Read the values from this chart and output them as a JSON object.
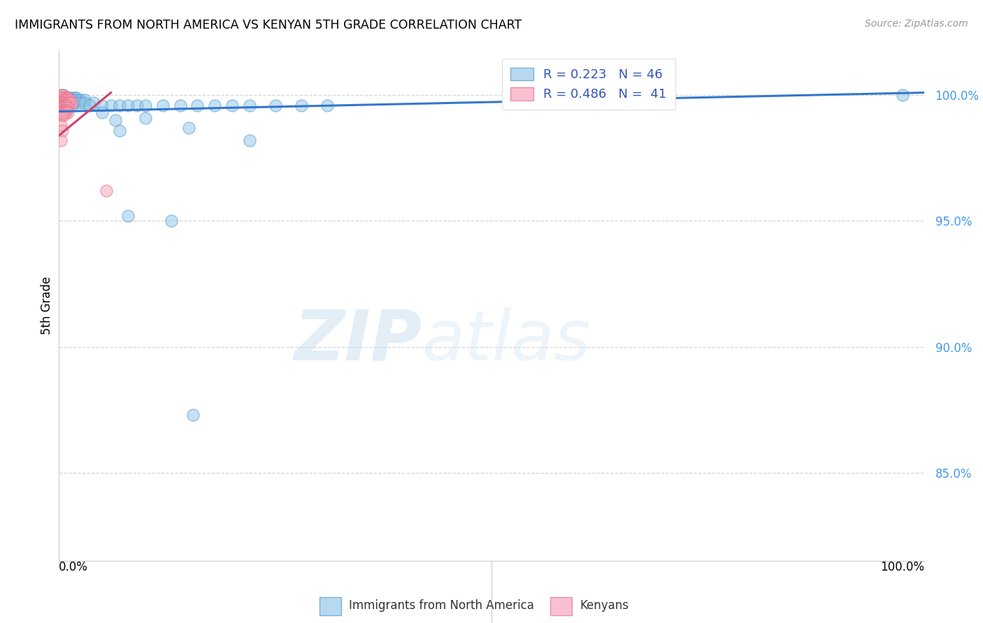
{
  "title": "IMMIGRANTS FROM NORTH AMERICA VS KENYAN 5TH GRADE CORRELATION CHART",
  "source": "Source: ZipAtlas.com",
  "ylabel": "5th Grade",
  "ytick_labels": [
    "100.0%",
    "95.0%",
    "90.0%",
    "85.0%"
  ],
  "ytick_values": [
    1.0,
    0.95,
    0.9,
    0.85
  ],
  "xlim": [
    0.0,
    1.0
  ],
  "ylim": [
    0.815,
    1.018
  ],
  "legend_blue_label": "R = 0.223   N = 46",
  "legend_pink_label": "R = 0.486   N =  41",
  "watermark_zip": "ZIP",
  "watermark_atlas": "atlas",
  "blue_color": "#8ec4e8",
  "pink_color": "#f4a0b0",
  "blue_edge_color": "#5a9fd4",
  "pink_edge_color": "#e87090",
  "trendline_blue_color": "#3377cc",
  "trendline_pink_color": "#cc4466",
  "blue_scatter": [
    [
      0.005,
      1.0
    ],
    [
      0.008,
      0.999
    ],
    [
      0.01,
      0.999
    ],
    [
      0.012,
      0.999
    ],
    [
      0.015,
      0.999
    ],
    [
      0.018,
      0.999
    ],
    [
      0.02,
      0.999
    ],
    [
      0.01,
      0.998
    ],
    [
      0.015,
      0.998
    ],
    [
      0.02,
      0.998
    ],
    [
      0.025,
      0.998
    ],
    [
      0.03,
      0.998
    ],
    [
      0.008,
      0.997
    ],
    [
      0.012,
      0.997
    ],
    [
      0.018,
      0.997
    ],
    [
      0.025,
      0.997
    ],
    [
      0.03,
      0.997
    ],
    [
      0.04,
      0.997
    ],
    [
      0.005,
      0.996
    ],
    [
      0.015,
      0.996
    ],
    [
      0.035,
      0.996
    ],
    [
      0.05,
      0.996
    ],
    [
      0.06,
      0.996
    ],
    [
      0.07,
      0.996
    ],
    [
      0.08,
      0.996
    ],
    [
      0.09,
      0.996
    ],
    [
      0.1,
      0.996
    ],
    [
      0.12,
      0.996
    ],
    [
      0.14,
      0.996
    ],
    [
      0.16,
      0.996
    ],
    [
      0.18,
      0.996
    ],
    [
      0.2,
      0.996
    ],
    [
      0.22,
      0.996
    ],
    [
      0.25,
      0.996
    ],
    [
      0.28,
      0.996
    ],
    [
      0.31,
      0.996
    ],
    [
      0.1,
      0.991
    ],
    [
      0.15,
      0.987
    ],
    [
      0.22,
      0.982
    ],
    [
      0.08,
      0.952
    ],
    [
      0.13,
      0.95
    ],
    [
      0.155,
      0.873
    ],
    [
      0.975,
      1.0
    ],
    [
      0.05,
      0.993
    ],
    [
      0.065,
      0.99
    ],
    [
      0.07,
      0.986
    ]
  ],
  "pink_scatter": [
    [
      0.002,
      1.0
    ],
    [
      0.004,
      1.0
    ],
    [
      0.006,
      0.999
    ],
    [
      0.008,
      0.999
    ],
    [
      0.01,
      0.999
    ],
    [
      0.003,
      0.999
    ],
    [
      0.005,
      0.998
    ],
    [
      0.007,
      0.998
    ],
    [
      0.009,
      0.998
    ],
    [
      0.012,
      0.998
    ],
    [
      0.002,
      0.997
    ],
    [
      0.004,
      0.997
    ],
    [
      0.006,
      0.997
    ],
    [
      0.008,
      0.997
    ],
    [
      0.01,
      0.997
    ],
    [
      0.012,
      0.997
    ],
    [
      0.015,
      0.997
    ],
    [
      0.003,
      0.996
    ],
    [
      0.005,
      0.996
    ],
    [
      0.007,
      0.996
    ],
    [
      0.009,
      0.996
    ],
    [
      0.002,
      0.995
    ],
    [
      0.004,
      0.995
    ],
    [
      0.006,
      0.995
    ],
    [
      0.008,
      0.995
    ],
    [
      0.01,
      0.995
    ],
    [
      0.003,
      0.994
    ],
    [
      0.005,
      0.994
    ],
    [
      0.007,
      0.994
    ],
    [
      0.009,
      0.994
    ],
    [
      0.002,
      0.993
    ],
    [
      0.004,
      0.993
    ],
    [
      0.006,
      0.993
    ],
    [
      0.008,
      0.993
    ],
    [
      0.01,
      0.993
    ],
    [
      0.003,
      0.992
    ],
    [
      0.005,
      0.992
    ],
    [
      0.002,
      0.988
    ],
    [
      0.004,
      0.986
    ],
    [
      0.002,
      0.982
    ],
    [
      0.055,
      0.962
    ]
  ],
  "blue_trend_x0": 0.0,
  "blue_trend_x1": 1.0,
  "blue_trend_y0": 0.9935,
  "blue_trend_y1": 1.001,
  "pink_trend_x0": 0.0,
  "pink_trend_x1": 0.06,
  "pink_trend_y0": 0.984,
  "pink_trend_y1": 1.001
}
